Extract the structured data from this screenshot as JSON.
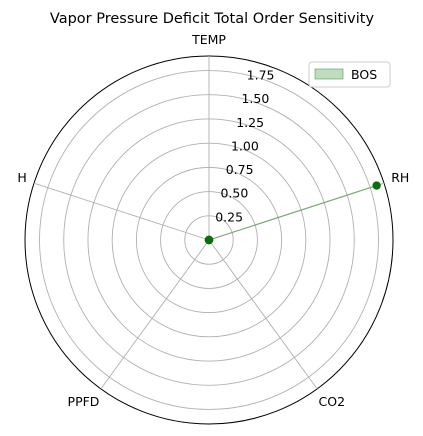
{
  "chart_data": {
    "type": "radar",
    "title": "Vapor Pressure Deficit Total Order Sensitivity",
    "categories": [
      "TEMP",
      "RH",
      "CO2",
      "PPFD",
      "H"
    ],
    "radial_ticks": [
      0.25,
      0.5,
      0.75,
      1.0,
      1.25,
      1.5,
      1.75
    ],
    "radial_tick_labels": [
      "0.25",
      "0.50",
      "0.75",
      "1.00",
      "1.25",
      "1.50",
      "1.75"
    ],
    "rlim": [
      0,
      1.9
    ],
    "grid": true,
    "legend_position": "top-right",
    "series": [
      {
        "name": "BOS",
        "values": [
          0.0,
          1.82,
          0.0,
          0.0,
          0.0
        ],
        "line_color": "#0a6e0a",
        "fill_color": "#2e8b2e"
      }
    ]
  }
}
